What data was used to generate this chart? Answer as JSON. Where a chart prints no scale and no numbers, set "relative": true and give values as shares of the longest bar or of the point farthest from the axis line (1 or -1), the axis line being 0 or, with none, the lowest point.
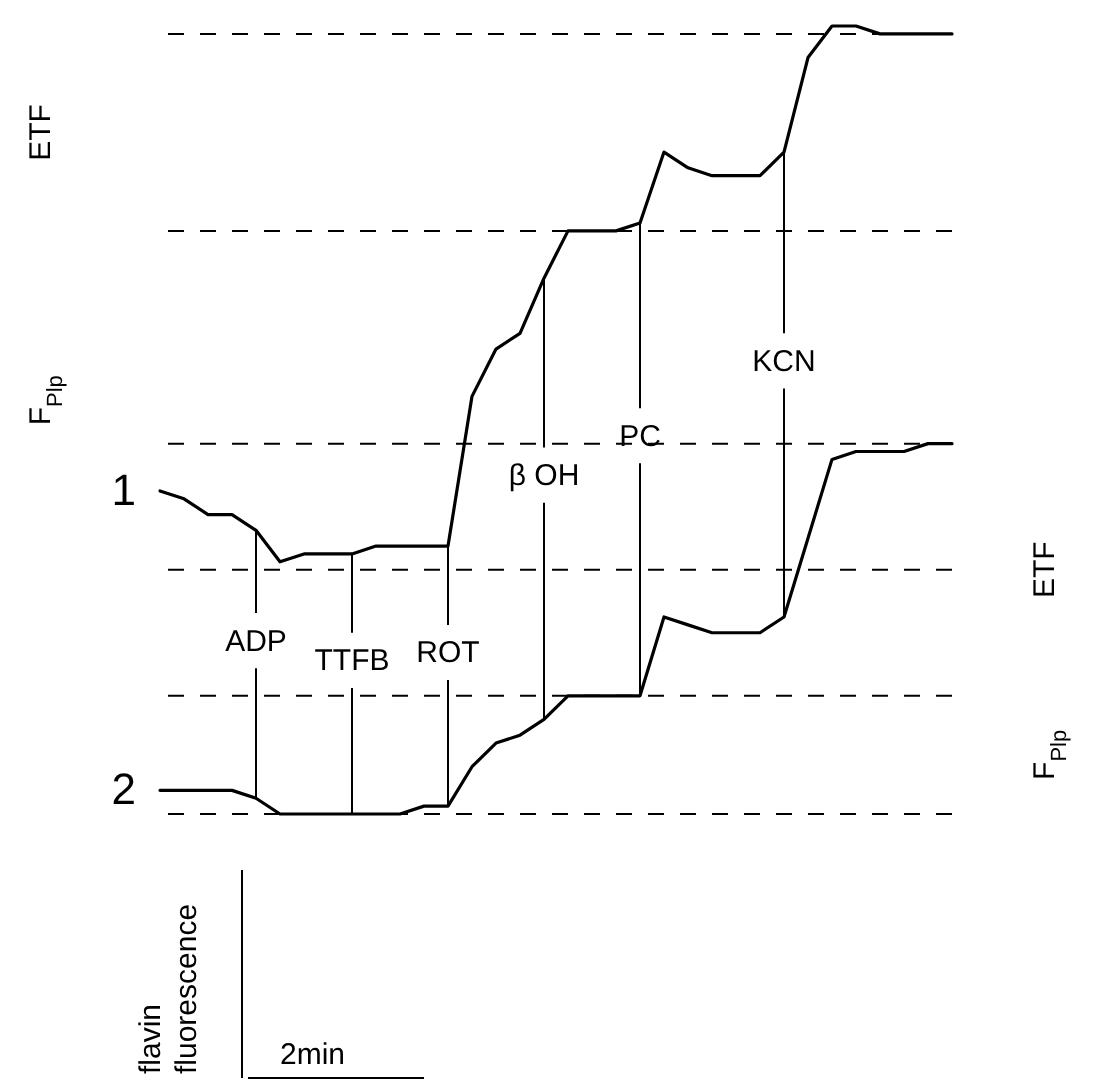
{
  "chart_data": {
    "type": "line",
    "relative": true,
    "categories": [
      null,
      null,
      null,
      null,
      null,
      null,
      null,
      null,
      null,
      null,
      null,
      null,
      null,
      null,
      null,
      null,
      null,
      null,
      null,
      null,
      null,
      null,
      null,
      null,
      null,
      null,
      null,
      null,
      null,
      null,
      null,
      null,
      null,
      null
    ],
    "series": [
      {
        "name": "1",
        "color": "#000000",
        "values": [
          0.41,
          0.4,
          0.38,
          0.38,
          0.36,
          0.32,
          0.33,
          0.33,
          0.33,
          0.34,
          0.34,
          0.34,
          0.34,
          0.53,
          0.59,
          0.61,
          0.68,
          0.74,
          0.74,
          0.74,
          0.75,
          0.84,
          0.82,
          0.81,
          0.81,
          0.81,
          0.84,
          0.96,
          1.0,
          1.0,
          0.99,
          0.99,
          0.99,
          0.99
        ]
      },
      {
        "name": "2",
        "color": "#000000",
        "values": [
          0.03,
          0.03,
          0.03,
          0.03,
          0.02,
          0.0,
          0.0,
          0.0,
          0.0,
          0.0,
          0.0,
          0.01,
          0.01,
          0.06,
          0.09,
          0.1,
          0.12,
          0.15,
          0.15,
          0.15,
          0.15,
          0.25,
          0.24,
          0.23,
          0.23,
          0.23,
          0.25,
          0.35,
          0.45,
          0.46,
          0.46,
          0.46,
          0.47,
          0.47
        ]
      }
    ],
    "ref_lines": [
      {
        "axis": "y",
        "value": 0.99,
        "color": "#000000",
        "line_style": "dashed"
      },
      {
        "axis": "y",
        "value": 0.74,
        "color": "#000000",
        "line_style": "dashed"
      },
      {
        "axis": "y",
        "value": 0.31,
        "color": "#000000",
        "line_style": "dashed"
      },
      {
        "axis": "y",
        "value": 0.47,
        "color": "#000000",
        "line_style": "dashed"
      },
      {
        "axis": "y",
        "value": 0.15,
        "color": "#000000",
        "line_style": "dashed"
      },
      {
        "axis": "y",
        "value": 0,
        "color": "#000000",
        "line_style": "dashed"
      }
    ],
    "annotations": [
      "ADP",
      "TTFB",
      "ROT",
      "β OH",
      "PC",
      "KCN",
      "ETF",
      "F$_{Plp}$",
      "ETF",
      "F$_{Plp}$",
      "flavin fluorescence",
      "2min"
    ],
    "line_style": "solid",
    "marker": "none"
  }
}
